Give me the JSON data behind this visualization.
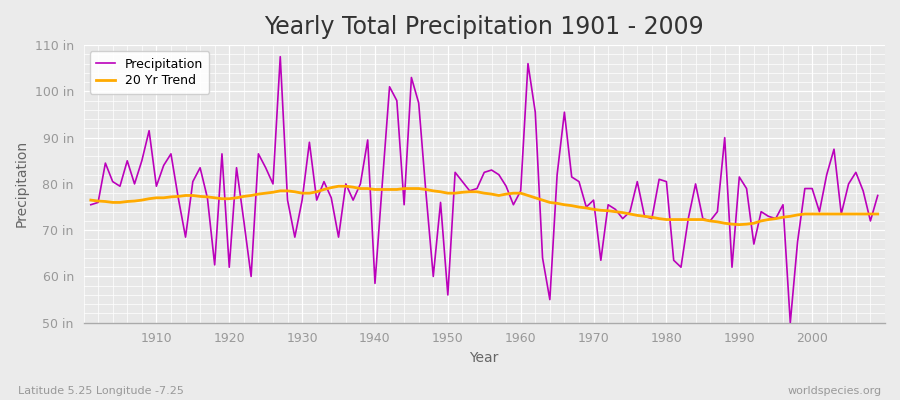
{
  "title": "Yearly Total Precipitation 1901 - 2009",
  "xlabel": "Year",
  "ylabel": "Precipitation",
  "subtitle_left": "Latitude 5.25 Longitude -7.25",
  "subtitle_right": "worldspecies.org",
  "ylim": [
    50,
    110
  ],
  "yticks": [
    50,
    60,
    70,
    80,
    90,
    100,
    110
  ],
  "ytick_labels": [
    "50 in",
    "60 in",
    "70 in",
    "80 in",
    "90 in",
    "100 in",
    "110 in"
  ],
  "years": [
    1901,
    1902,
    1903,
    1904,
    1905,
    1906,
    1907,
    1908,
    1909,
    1910,
    1911,
    1912,
    1913,
    1914,
    1915,
    1916,
    1917,
    1918,
    1919,
    1920,
    1921,
    1922,
    1923,
    1924,
    1925,
    1926,
    1927,
    1928,
    1929,
    1930,
    1931,
    1932,
    1933,
    1934,
    1935,
    1936,
    1937,
    1938,
    1939,
    1940,
    1941,
    1942,
    1943,
    1944,
    1945,
    1946,
    1947,
    1948,
    1949,
    1950,
    1951,
    1952,
    1953,
    1954,
    1955,
    1956,
    1957,
    1958,
    1959,
    1960,
    1961,
    1962,
    1963,
    1964,
    1965,
    1966,
    1967,
    1968,
    1969,
    1970,
    1971,
    1972,
    1973,
    1974,
    1975,
    1976,
    1977,
    1978,
    1979,
    1980,
    1981,
    1982,
    1983,
    1984,
    1985,
    1986,
    1987,
    1988,
    1989,
    1990,
    1991,
    1992,
    1993,
    1994,
    1995,
    1996,
    1997,
    1998,
    1999,
    2000,
    2001,
    2002,
    2003,
    2004,
    2005,
    2006,
    2007,
    2008,
    2009
  ],
  "precip": [
    75.5,
    76.0,
    84.5,
    80.5,
    79.5,
    85.0,
    80.0,
    85.0,
    91.5,
    79.5,
    84.0,
    86.5,
    77.0,
    68.5,
    80.5,
    83.5,
    77.0,
    62.5,
    86.5,
    62.0,
    83.5,
    72.0,
    60.0,
    86.5,
    83.5,
    80.0,
    107.5,
    76.5,
    68.5,
    76.5,
    89.0,
    76.5,
    80.5,
    77.0,
    68.5,
    80.0,
    76.5,
    80.0,
    89.5,
    58.5,
    80.0,
    101.0,
    98.0,
    75.5,
    103.0,
    97.5,
    78.0,
    60.0,
    76.0,
    56.0,
    82.5,
    80.5,
    78.5,
    79.0,
    82.5,
    83.0,
    82.0,
    79.5,
    75.5,
    78.5,
    106.0,
    95.5,
    64.0,
    55.0,
    82.0,
    95.5,
    81.5,
    80.5,
    75.0,
    76.5,
    63.5,
    75.5,
    74.5,
    72.5,
    74.0,
    80.5,
    73.0,
    72.5,
    81.0,
    80.5,
    63.5,
    62.0,
    72.5,
    80.0,
    72.5,
    72.0,
    74.0,
    90.0,
    62.0,
    81.5,
    79.0,
    67.0,
    74.0,
    73.0,
    72.5,
    75.5,
    50.0,
    67.5,
    79.0,
    79.0,
    74.0,
    82.0,
    87.5,
    73.5,
    80.0,
    82.5,
    78.5,
    72.0,
    77.5
  ],
  "trend": [
    76.5,
    76.3,
    76.2,
    76.0,
    76.0,
    76.2,
    76.3,
    76.5,
    76.8,
    77.0,
    77.0,
    77.2,
    77.3,
    77.5,
    77.5,
    77.3,
    77.2,
    77.0,
    76.8,
    76.8,
    77.0,
    77.3,
    77.5,
    77.8,
    78.0,
    78.2,
    78.5,
    78.5,
    78.3,
    78.0,
    78.0,
    78.3,
    78.8,
    79.2,
    79.5,
    79.5,
    79.3,
    79.0,
    79.0,
    78.8,
    78.8,
    78.8,
    78.8,
    79.0,
    79.0,
    79.0,
    78.8,
    78.5,
    78.3,
    78.0,
    78.0,
    78.2,
    78.3,
    78.3,
    78.0,
    77.8,
    77.5,
    77.8,
    78.0,
    78.0,
    77.5,
    77.0,
    76.5,
    76.0,
    75.8,
    75.5,
    75.3,
    75.0,
    74.8,
    74.5,
    74.3,
    74.2,
    74.0,
    73.8,
    73.5,
    73.2,
    73.0,
    72.8,
    72.5,
    72.3,
    72.3,
    72.3,
    72.3,
    72.3,
    72.3,
    72.0,
    71.8,
    71.5,
    71.3,
    71.2,
    71.3,
    71.5,
    72.0,
    72.3,
    72.5,
    72.8,
    73.0,
    73.3,
    73.5,
    73.5,
    73.5,
    73.5,
    73.5,
    73.5,
    73.5,
    73.5,
    73.5,
    73.5,
    73.5
  ],
  "precip_color": "#bb00bb",
  "trend_color": "#ffaa00",
  "bg_color": "#ebebeb",
  "plot_bg_color": "#e8e8e8",
  "grid_color": "#ffffff",
  "bottom_spine_color": "#aaaaaa",
  "title_fontsize": 17,
  "label_fontsize": 10,
  "tick_fontsize": 9,
  "tick_color": "#999999",
  "legend_label_precip": "Precipitation",
  "legend_label_trend": "20 Yr Trend"
}
